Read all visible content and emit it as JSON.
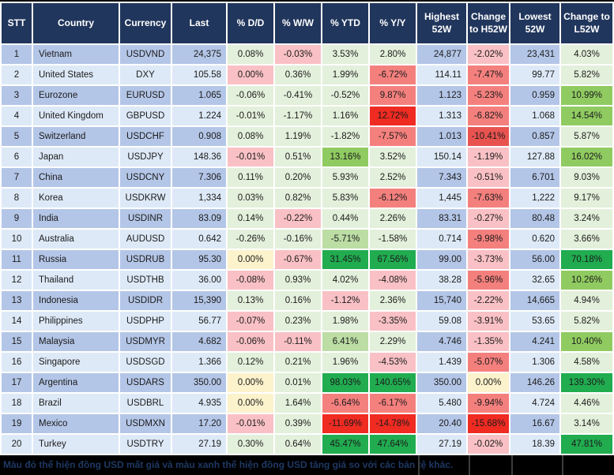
{
  "palette": {
    "header_bg": "#21365C",
    "header_text": "#FFFFFF",
    "row_odd": "#B4C6E7",
    "row_even": "#DDE9F7",
    "note_bg": "#000000",
    "note_text": "#1F3864",
    "g1": "#E3F0DB",
    "g2": "#BCDDA4",
    "g3": "#90CB61",
    "g4": "#21AC50",
    "y1": "#FCF2CC",
    "r1": "#F9C1C5",
    "r2": "#F4807E",
    "r3": "#E85350",
    "r4": "#EF2B22"
  },
  "chart_data": {
    "type": "table",
    "columns": [
      "STT",
      "Country",
      "Currency",
      "Last",
      "% D/D",
      "% W/W",
      "% YTD",
      "% Y/Y",
      "Highest 52W",
      "Change to H52W",
      "Lowest 52W",
      "Change to L52W"
    ],
    "rows": [
      {
        "stt": "1",
        "country": "Vietnam",
        "currency": "USDVND",
        "last": "24,375",
        "dd": {
          "v": "0.08%",
          "c": "g1"
        },
        "ww": {
          "v": "-0.03%",
          "c": "r1"
        },
        "ytd": {
          "v": "3.53%",
          "c": "g1"
        },
        "yy": {
          "v": "2.80%",
          "c": "g1"
        },
        "high": "24,877",
        "chg_h": {
          "v": "-2.02%",
          "c": "r1"
        },
        "low": "23,431",
        "chg_l": {
          "v": "4.03%",
          "c": "g1"
        }
      },
      {
        "stt": "2",
        "country": "United States",
        "currency": "DXY",
        "last": "105.58",
        "dd": {
          "v": "0.00%",
          "c": "r1"
        },
        "ww": {
          "v": "0.36%",
          "c": "g1"
        },
        "ytd": {
          "v": "1.99%",
          "c": "g1"
        },
        "yy": {
          "v": "-6.72%",
          "c": "r2"
        },
        "high": "114.11",
        "chg_h": {
          "v": "-7.47%",
          "c": "r2"
        },
        "low": "99.77",
        "chg_l": {
          "v": "5.82%",
          "c": "g1"
        }
      },
      {
        "stt": "3",
        "country": "Eurozone",
        "currency": "EURUSD",
        "last": "1.065",
        "dd": {
          "v": "-0.06%",
          "c": "g1"
        },
        "ww": {
          "v": "-0.41%",
          "c": "g1"
        },
        "ytd": {
          "v": "-0.52%",
          "c": "g1"
        },
        "yy": {
          "v": "9.87%",
          "c": "r2"
        },
        "high": "1.123",
        "chg_h": {
          "v": "-5.23%",
          "c": "r2"
        },
        "low": "0.959",
        "chg_l": {
          "v": "10.99%",
          "c": "g3"
        }
      },
      {
        "stt": "4",
        "country": "United Kingdom",
        "currency": "GBPUSD",
        "last": "1.224",
        "dd": {
          "v": "-0.01%",
          "c": "g1"
        },
        "ww": {
          "v": "-1.17%",
          "c": "g1"
        },
        "ytd": {
          "v": "1.16%",
          "c": "g1"
        },
        "yy": {
          "v": "12.72%",
          "c": "r4"
        },
        "high": "1.313",
        "chg_h": {
          "v": "-6.82%",
          "c": "r2"
        },
        "low": "1.068",
        "chg_l": {
          "v": "14.54%",
          "c": "g3"
        }
      },
      {
        "stt": "5",
        "country": "Switzerland",
        "currency": "USDCHF",
        "last": "0.908",
        "dd": {
          "v": "0.08%",
          "c": "g1"
        },
        "ww": {
          "v": "1.19%",
          "c": "g1"
        },
        "ytd": {
          "v": "-1.82%",
          "c": "g1"
        },
        "yy": {
          "v": "-7.57%",
          "c": "r2"
        },
        "high": "1.013",
        "chg_h": {
          "v": "-10.41%",
          "c": "r3"
        },
        "low": "0.857",
        "chg_l": {
          "v": "5.87%",
          "c": "g1"
        }
      },
      {
        "stt": "6",
        "country": "Japan",
        "currency": "USDJPY",
        "last": "148.36",
        "dd": {
          "v": "-0.01%",
          "c": "r1"
        },
        "ww": {
          "v": "0.51%",
          "c": "g1"
        },
        "ytd": {
          "v": "13.16%",
          "c": "g3"
        },
        "yy": {
          "v": "3.52%",
          "c": "g1"
        },
        "high": "150.14",
        "chg_h": {
          "v": "-1.19%",
          "c": "r1"
        },
        "low": "127.88",
        "chg_l": {
          "v": "16.02%",
          "c": "g3"
        }
      },
      {
        "stt": "7",
        "country": "China",
        "currency": "USDCNY",
        "last": "7.306",
        "dd": {
          "v": "0.11%",
          "c": "g1"
        },
        "ww": {
          "v": "0.20%",
          "c": "g1"
        },
        "ytd": {
          "v": "5.93%",
          "c": "g1"
        },
        "yy": {
          "v": "2.52%",
          "c": "g1"
        },
        "high": "7.343",
        "chg_h": {
          "v": "-0.51%",
          "c": "r1"
        },
        "low": "6.701",
        "chg_l": {
          "v": "9.03%",
          "c": "g1"
        }
      },
      {
        "stt": "8",
        "country": "Korea",
        "currency": "USDKRW",
        "last": "1,334",
        "dd": {
          "v": "0.03%",
          "c": "g1"
        },
        "ww": {
          "v": "0.82%",
          "c": "g1"
        },
        "ytd": {
          "v": "5.83%",
          "c": "g1"
        },
        "yy": {
          "v": "-6.12%",
          "c": "r2"
        },
        "high": "1,445",
        "chg_h": {
          "v": "-7.63%",
          "c": "r2"
        },
        "low": "1,222",
        "chg_l": {
          "v": "9.17%",
          "c": "g1"
        }
      },
      {
        "stt": "9",
        "country": "India",
        "currency": "USDINR",
        "last": "83.09",
        "dd": {
          "v": "0.14%",
          "c": "g1"
        },
        "ww": {
          "v": "-0.22%",
          "c": "r1"
        },
        "ytd": {
          "v": "0.44%",
          "c": "g1"
        },
        "yy": {
          "v": "2.26%",
          "c": "g1"
        },
        "high": "83.31",
        "chg_h": {
          "v": "-0.27%",
          "c": "r1"
        },
        "low": "80.48",
        "chg_l": {
          "v": "3.24%",
          "c": "g1"
        }
      },
      {
        "stt": "10",
        "country": "Australia",
        "currency": "AUDUSD",
        "last": "0.642",
        "dd": {
          "v": "-0.26%",
          "c": "g1"
        },
        "ww": {
          "v": "-0.16%",
          "c": "g1"
        },
        "ytd": {
          "v": "-5.71%",
          "c": "g2"
        },
        "yy": {
          "v": "-1.58%",
          "c": "g1"
        },
        "high": "0.714",
        "chg_h": {
          "v": "-9.98%",
          "c": "r2"
        },
        "low": "0.620",
        "chg_l": {
          "v": "3.66%",
          "c": "g1"
        }
      },
      {
        "stt": "11",
        "country": "Russia",
        "currency": "USDRUB",
        "last": "95.30",
        "dd": {
          "v": "0.00%",
          "c": "y1"
        },
        "ww": {
          "v": "-0.67%",
          "c": "r1"
        },
        "ytd": {
          "v": "31.45%",
          "c": "g4"
        },
        "yy": {
          "v": "67.56%",
          "c": "g4"
        },
        "high": "99.00",
        "chg_h": {
          "v": "-3.73%",
          "c": "r1"
        },
        "low": "56.00",
        "chg_l": {
          "v": "70.18%",
          "c": "g4"
        }
      },
      {
        "stt": "12",
        "country": "Thailand",
        "currency": "USDTHB",
        "last": "36.00",
        "dd": {
          "v": "-0.08%",
          "c": "r1"
        },
        "ww": {
          "v": "0.93%",
          "c": "g1"
        },
        "ytd": {
          "v": "4.02%",
          "c": "g1"
        },
        "yy": {
          "v": "-4.08%",
          "c": "r1"
        },
        "high": "38.28",
        "chg_h": {
          "v": "-5.96%",
          "c": "r2"
        },
        "low": "32.65",
        "chg_l": {
          "v": "10.26%",
          "c": "g3"
        }
      },
      {
        "stt": "13",
        "country": "Indonesia",
        "currency": "USDIDR",
        "last": "15,390",
        "dd": {
          "v": "0.13%",
          "c": "g1"
        },
        "ww": {
          "v": "0.16%",
          "c": "g1"
        },
        "ytd": {
          "v": "-1.12%",
          "c": "r1"
        },
        "yy": {
          "v": "2.36%",
          "c": "g1"
        },
        "high": "15,740",
        "chg_h": {
          "v": "-2.22%",
          "c": "r1"
        },
        "low": "14,665",
        "chg_l": {
          "v": "4.94%",
          "c": "g1"
        }
      },
      {
        "stt": "14",
        "country": "Philippines",
        "currency": "USDPHP",
        "last": "56.77",
        "dd": {
          "v": "-0.07%",
          "c": "r1"
        },
        "ww": {
          "v": "0.23%",
          "c": "g1"
        },
        "ytd": {
          "v": "1.98%",
          "c": "g1"
        },
        "yy": {
          "v": "-3.35%",
          "c": "r1"
        },
        "high": "59.08",
        "chg_h": {
          "v": "-3.91%",
          "c": "r1"
        },
        "low": "53.65",
        "chg_l": {
          "v": "5.82%",
          "c": "g1"
        }
      },
      {
        "stt": "15",
        "country": "Malaysia",
        "currency": "USDMYR",
        "last": "4.682",
        "dd": {
          "v": "-0.06%",
          "c": "r1"
        },
        "ww": {
          "v": "-0.11%",
          "c": "r1"
        },
        "ytd": {
          "v": "6.41%",
          "c": "g2"
        },
        "yy": {
          "v": "2.29%",
          "c": "g1"
        },
        "high": "4.746",
        "chg_h": {
          "v": "-1.35%",
          "c": "r1"
        },
        "low": "4.241",
        "chg_l": {
          "v": "10.40%",
          "c": "g3"
        }
      },
      {
        "stt": "16",
        "country": "Singapore",
        "currency": "USDSGD",
        "last": "1.366",
        "dd": {
          "v": "0.12%",
          "c": "g1"
        },
        "ww": {
          "v": "0.21%",
          "c": "g1"
        },
        "ytd": {
          "v": "1.96%",
          "c": "g1"
        },
        "yy": {
          "v": "-4.53%",
          "c": "r1"
        },
        "high": "1.439",
        "chg_h": {
          "v": "-5.07%",
          "c": "r2"
        },
        "low": "1.306",
        "chg_l": {
          "v": "4.58%",
          "c": "g1"
        }
      },
      {
        "stt": "17",
        "country": "Argentina",
        "currency": "USDARS",
        "last": "350.00",
        "dd": {
          "v": "0.00%",
          "c": "y1"
        },
        "ww": {
          "v": "0.01%",
          "c": "g1"
        },
        "ytd": {
          "v": "98.03%",
          "c": "g4"
        },
        "yy": {
          "v": "140.65%",
          "c": "g4"
        },
        "high": "350.00",
        "chg_h": {
          "v": "0.00%",
          "c": "y1"
        },
        "low": "146.26",
        "chg_l": {
          "v": "139.30%",
          "c": "g4"
        }
      },
      {
        "stt": "18",
        "country": "Brazil",
        "currency": "USDBRL",
        "last": "4.935",
        "dd": {
          "v": "0.00%",
          "c": "y1"
        },
        "ww": {
          "v": "1.64%",
          "c": "g1"
        },
        "ytd": {
          "v": "-6.64%",
          "c": "r2"
        },
        "yy": {
          "v": "-6.17%",
          "c": "r2"
        },
        "high": "5.480",
        "chg_h": {
          "v": "-9.94%",
          "c": "r2"
        },
        "low": "4.724",
        "chg_l": {
          "v": "4.46%",
          "c": "g1"
        }
      },
      {
        "stt": "19",
        "country": "Mexico",
        "currency": "USDMXN",
        "last": "17.20",
        "dd": {
          "v": "-0.01%",
          "c": "r1"
        },
        "ww": {
          "v": "0.39%",
          "c": "g1"
        },
        "ytd": {
          "v": "-11.69%",
          "c": "r4"
        },
        "yy": {
          "v": "-14.78%",
          "c": "r4"
        },
        "high": "20.40",
        "chg_h": {
          "v": "-15.68%",
          "c": "r4"
        },
        "low": "16.67",
        "chg_l": {
          "v": "3.14%",
          "c": "g1"
        }
      },
      {
        "stt": "20",
        "country": "Turkey",
        "currency": "USDTRY",
        "last": "27.19",
        "dd": {
          "v": "0.30%",
          "c": "g1"
        },
        "ww": {
          "v": "0.64%",
          "c": "g1"
        },
        "ytd": {
          "v": "45.47%",
          "c": "g4"
        },
        "yy": {
          "v": "47.64%",
          "c": "g4"
        },
        "high": "27.19",
        "chg_h": {
          "v": "-0.02%",
          "c": "r1"
        },
        "low": "18.39",
        "chg_l": {
          "v": "47.81%",
          "c": "g4"
        }
      }
    ]
  },
  "footnote": {
    "text": "Màu đỏ thể hiện đồng USD mất giá và màu xanh thể hiện đồng USD tăng giá so với các bản tệ khác."
  }
}
